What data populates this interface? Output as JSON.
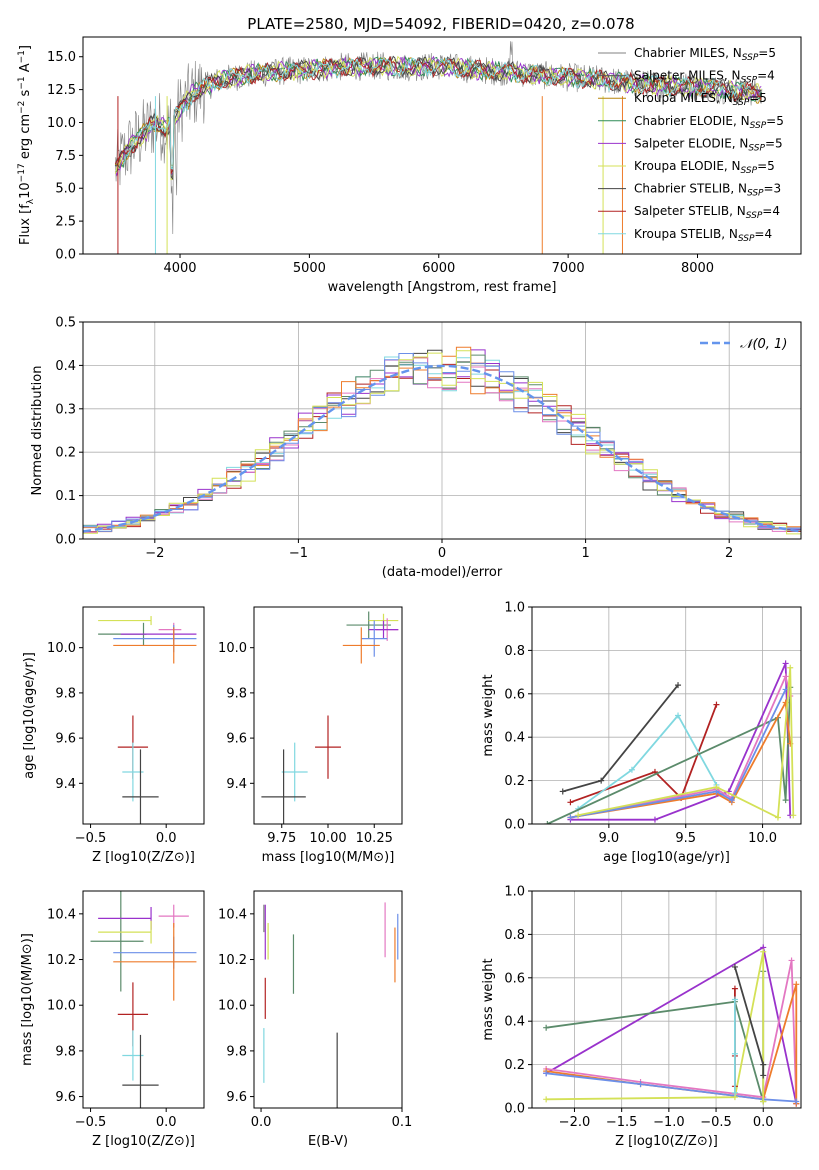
{
  "figure": {
    "title": "PLATE=2580, MJD=54092, FIBERID=0420, z=0.078"
  },
  "colors": {
    "data": "#808080",
    "blue": "#6495ED",
    "Chabrier MILES": "#808080",
    "Salpeter MILES": "#5a5a5a",
    "Kroupa MILES": "#b8860b",
    "Chabrier ELODIE": "#2e8b57",
    "Salpeter ELODIE": "#9932cc",
    "Kroupa ELODIE": "#d4e157",
    "Chabrier STELIB": "#444444",
    "Salpeter STELIB": "#b22222",
    "Kroupa STELIB": "#80d8e0",
    "orange": "#ee7c2c",
    "pink": "#e377c2",
    "sage": "#5b8b6b",
    "lightblue": "#6c8fe8"
  },
  "chart_data": [
    {
      "type": "line",
      "title": "PLATE=2580, MJD=54092, FIBERID=0420, z=0.078",
      "xlabel": "wavelength [Angstrom, rest frame]",
      "ylabel": "Flux [f_λ 10^-17 erg cm^-2 s^-1 A^-1]",
      "xlim": [
        3250,
        8800
      ],
      "ylim": [
        0,
        16.5
      ],
      "xticks": [
        4000,
        5000,
        6000,
        7000,
        8000
      ],
      "yticks": [
        0.0,
        2.5,
        5.0,
        7.5,
        10.0,
        12.5,
        15.0
      ],
      "legend_position": "right",
      "series": [
        {
          "name": "Chabrier MILES, N_SSP=5",
          "color": "#808080"
        },
        {
          "name": "Salpeter MILES, N_SSP=4",
          "color": "#5a5a5a"
        },
        {
          "name": "Kroupa MILES, N_SSP=5",
          "color": "#b8860b"
        },
        {
          "name": "Chabrier ELODIE, N_SSP=5",
          "color": "#2e8b57"
        },
        {
          "name": "Salpeter ELODIE, N_SSP=5",
          "color": "#9932cc"
        },
        {
          "name": "Kroupa ELODIE, N_SSP=5",
          "color": "#d4e157"
        },
        {
          "name": "Chabrier STELIB, N_SSP=3",
          "color": "#444444"
        },
        {
          "name": "Salpeter STELIB, N_SSP=4",
          "color": "#b22222"
        },
        {
          "name": "Kroupa STELIB, N_SSP=4",
          "color": "#80d8e0"
        }
      ],
      "continuum": {
        "x": [
          3500,
          3600,
          3700,
          3800,
          3900,
          4000,
          4100,
          4300,
          4500,
          4800,
          5000,
          5200,
          5500,
          5800,
          6000,
          6300,
          6600,
          6900,
          7200,
          7400,
          7600,
          8000,
          8500
        ],
        "y": [
          6.5,
          8.0,
          9.0,
          10.0,
          9.5,
          11.0,
          12.2,
          13.2,
          13.6,
          13.9,
          14.0,
          14.2,
          14.3,
          14.2,
          14.3,
          14.0,
          13.8,
          13.5,
          13.3,
          13.1,
          12.9,
          12.7,
          12.2
        ]
      }
    },
    {
      "type": "bar",
      "xlabel": "(data-model)/error",
      "ylabel": "Normed distribution",
      "xlim": [
        -2.5,
        2.5
      ],
      "ylim": [
        0,
        0.5
      ],
      "xticks": [
        -2,
        -1,
        0,
        1,
        2
      ],
      "yticks": [
        0.0,
        0.1,
        0.2,
        0.3,
        0.4,
        0.5
      ],
      "legend": "𝒩(0, 1)",
      "legend_position": "top-right",
      "bin_width": 0.1
    },
    {
      "type": "scatter",
      "xlabel": "Z [log10(Z/Z⊙)]",
      "ylabel": "age  [log10(age/yr)]",
      "xlim": [
        -0.55,
        0.25
      ],
      "ylim": [
        9.22,
        10.18
      ],
      "xticks": [
        -0.5,
        0.0
      ],
      "yticks": [
        9.4,
        9.6,
        9.8,
        10.0
      ],
      "points": [
        {
          "x": -0.15,
          "y": 10.06,
          "xerr": [
            0.3,
            0.02
          ],
          "yerr": 0.05,
          "color": "#5b8b6b"
        },
        {
          "x": -0.1,
          "y": 10.12,
          "xerr": [
            0.35,
            0.0
          ],
          "yerr": 0.02,
          "color": "#d4e157"
        },
        {
          "x": 0.05,
          "y": 10.08,
          "xerr": [
            0.1,
            0.05
          ],
          "yerr": 0.03,
          "color": "#e377c2"
        },
        {
          "x": 0.05,
          "y": 10.06,
          "xerr": [
            0.35,
            0.15
          ],
          "yerr": 0.03,
          "color": "#9932cc"
        },
        {
          "x": 0.05,
          "y": 10.04,
          "xerr": [
            0.4,
            0.15
          ],
          "yerr": 0.06,
          "color": "#6c8fe8"
        },
        {
          "x": 0.05,
          "y": 10.01,
          "xerr": [
            0.4,
            0.15
          ],
          "yerr": 0.08,
          "color": "#ee7c2c"
        },
        {
          "x": -0.22,
          "y": 9.56,
          "xerr": [
            0.1,
            0.1
          ],
          "yerr": 0.14,
          "color": "#b22222"
        },
        {
          "x": -0.22,
          "y": 9.45,
          "xerr": [
            0.07,
            0.07
          ],
          "yerr": 0.13,
          "color": "#80d8e0"
        },
        {
          "x": -0.17,
          "y": 9.34,
          "xerr": [
            0.12,
            0.12
          ],
          "yerr": 0.21,
          "color": "#444444"
        }
      ]
    },
    {
      "type": "scatter",
      "xlabel": "mass [log10(M/M⊙)]",
      "ylabel": "",
      "xlim": [
        9.6,
        10.4
      ],
      "ylim": [
        9.22,
        10.18
      ],
      "xticks": [
        9.75,
        10.0,
        10.25
      ],
      "xticklabels": [
        "9.75",
        "10.00",
        "10.25"
      ],
      "yticks": [
        9.4,
        9.6,
        9.8,
        10.0
      ],
      "points": [
        {
          "x": 10.22,
          "y": 10.1,
          "xerr": 0.12,
          "yerr": 0.06,
          "color": "#5b8b6b"
        },
        {
          "x": 10.3,
          "y": 10.12,
          "xerr": 0.08,
          "yerr": 0.03,
          "color": "#d4e157"
        },
        {
          "x": 10.32,
          "y": 10.08,
          "xerr": 0.06,
          "yerr": 0.05,
          "color": "#e377c2"
        },
        {
          "x": 10.3,
          "y": 10.08,
          "xerr": 0.08,
          "yerr": 0.04,
          "color": "#9932cc"
        },
        {
          "x": 10.25,
          "y": 10.04,
          "xerr": 0.07,
          "yerr": 0.08,
          "color": "#6c8fe8"
        },
        {
          "x": 10.18,
          "y": 10.01,
          "xerr": 0.1,
          "yerr": 0.08,
          "color": "#ee7c2c"
        },
        {
          "x": 10.0,
          "y": 9.56,
          "xerr": 0.07,
          "yerr": 0.14,
          "color": "#b22222"
        },
        {
          "x": 9.82,
          "y": 9.45,
          "xerr": 0.07,
          "yerr": 0.13,
          "color": "#80d8e0"
        },
        {
          "x": 9.76,
          "y": 9.34,
          "xerr": 0.12,
          "yerr": 0.21,
          "color": "#444444"
        }
      ]
    },
    {
      "type": "line",
      "xlabel": "age  [log10(age/yr)]",
      "ylabel": "mass weight",
      "xlim": [
        8.5,
        10.25
      ],
      "ylim": [
        0,
        1.0
      ],
      "xticks": [
        9.0,
        9.5,
        10.0
      ],
      "yticks": [
        0.0,
        0.2,
        0.4,
        0.6,
        0.8,
        1.0
      ],
      "series": [
        {
          "color": "#444444",
          "x": [
            8.7,
            8.95,
            9.45
          ],
          "y": [
            0.15,
            0.2,
            0.64
          ]
        },
        {
          "color": "#b22222",
          "x": [
            8.75,
            9.3,
            9.47,
            9.7
          ],
          "y": [
            0.1,
            0.24,
            0.12,
            0.55
          ]
        },
        {
          "color": "#80d8e0",
          "x": [
            8.8,
            9.15,
            9.45,
            9.7
          ],
          "y": [
            0.07,
            0.25,
            0.5,
            0.18
          ]
        },
        {
          "color": "#9932cc",
          "x": [
            8.75,
            9.3,
            9.78,
            10.15,
            10.18
          ],
          "y": [
            0.02,
            0.02,
            0.15,
            0.74,
            0.04
          ]
        },
        {
          "color": "#5b8b6b",
          "x": [
            8.6,
            10.1,
            10.15,
            10.18
          ],
          "y": [
            0.0,
            0.49,
            0.11,
            0.63
          ]
        },
        {
          "color": "#e377c2",
          "x": [
            8.75,
            9.7,
            9.8,
            10.15,
            10.18
          ],
          "y": [
            0.03,
            0.16,
            0.12,
            0.68,
            0.59
          ]
        },
        {
          "color": "#ee7c2c",
          "x": [
            8.75,
            9.7,
            9.8,
            10.15,
            10.18
          ],
          "y": [
            0.03,
            0.14,
            0.1,
            0.56,
            0.37
          ]
        },
        {
          "color": "#6c8fe8",
          "x": [
            8.75,
            9.7,
            9.8,
            10.15
          ],
          "y": [
            0.03,
            0.15,
            0.11,
            0.62
          ]
        },
        {
          "color": "#d4e157",
          "x": [
            8.8,
            9.7,
            10.1,
            10.18,
            10.2
          ],
          "y": [
            0.04,
            0.17,
            0.03,
            0.72,
            0.04
          ]
        }
      ]
    },
    {
      "type": "scatter",
      "xlabel": "Z [log10(Z/Z⊙)]",
      "ylabel": "mass [log10(M/M⊙)]",
      "xlim": [
        -0.55,
        0.25
      ],
      "ylim": [
        9.55,
        10.5
      ],
      "xticks": [
        -0.5,
        0.0
      ],
      "yticks": [
        9.6,
        9.8,
        10.0,
        10.2,
        10.4
      ],
      "points": [
        {
          "x": -0.3,
          "y": 10.28,
          "xerr": [
            0.2,
            0.15
          ],
          "yerr": 0.22,
          "color": "#5b8b6b"
        },
        {
          "x": -0.1,
          "y": 10.38,
          "xerr": [
            0.35,
            0.0
          ],
          "yerr": 0.05,
          "color": "#9932cc"
        },
        {
          "x": -0.1,
          "y": 10.32,
          "xerr": [
            0.35,
            0.0
          ],
          "yerr": 0.05,
          "color": "#d4e157"
        },
        {
          "x": 0.05,
          "y": 10.39,
          "xerr": [
            0.1,
            0.1
          ],
          "yerr": 0.05,
          "color": "#e377c2"
        },
        {
          "x": 0.05,
          "y": 10.23,
          "xerr": [
            0.4,
            0.15
          ],
          "yerr": 0.07,
          "color": "#6c8fe8"
        },
        {
          "x": 0.05,
          "y": 10.19,
          "xerr": [
            0.4,
            0.15
          ],
          "yerr": 0.17,
          "color": "#ee7c2c"
        },
        {
          "x": -0.22,
          "y": 9.96,
          "xerr": [
            0.1,
            0.1
          ],
          "yerr": 0.14,
          "color": "#b22222"
        },
        {
          "x": -0.22,
          "y": 9.78,
          "xerr": [
            0.07,
            0.07
          ],
          "yerr": 0.11,
          "color": "#80d8e0"
        },
        {
          "x": -0.17,
          "y": 9.65,
          "xerr": [
            0.12,
            0.12
          ],
          "yerr": 0.22,
          "color": "#444444"
        }
      ]
    },
    {
      "type": "scatter",
      "xlabel": "E(B-V)",
      "ylabel": "",
      "xlim": [
        -0.005,
        0.1
      ],
      "ylim": [
        9.55,
        10.5
      ],
      "xticks": [
        0.0,
        0.1
      ],
      "xticklabels": [
        "0.0",
        "0.1"
      ],
      "yticks": [
        9.6,
        9.8,
        10.0,
        10.2,
        10.4
      ],
      "points": [
        {
          "x": 0.003,
          "y": 10.32,
          "yerr": 0.12,
          "color": "#9932cc"
        },
        {
          "x": 0.005,
          "y": 10.28,
          "yerr": 0.08,
          "color": "#d4e157"
        },
        {
          "x": 0.023,
          "y": 10.18,
          "yerr": 0.13,
          "color": "#5b8b6b"
        },
        {
          "x": 0.003,
          "y": 10.03,
          "yerr": 0.09,
          "color": "#b22222"
        },
        {
          "x": 0.002,
          "y": 9.78,
          "yerr": 0.12,
          "color": "#80d8e0"
        },
        {
          "x": 0.054,
          "y": 9.66,
          "yerr": 0.22,
          "color": "#444444"
        },
        {
          "x": 0.088,
          "y": 10.33,
          "yerr": 0.12,
          "color": "#e377c2"
        },
        {
          "x": 0.095,
          "y": 10.22,
          "yerr": 0.12,
          "color": "#ee7c2c"
        },
        {
          "x": 0.097,
          "y": 10.3,
          "yerr": 0.1,
          "color": "#6c8fe8"
        },
        {
          "x": 0.002,
          "y": 10.38,
          "yerr": 0.06,
          "color": "#808080"
        }
      ]
    },
    {
      "type": "line",
      "xlabel": "Z [log10(Z/Z⊙)]",
      "ylabel": "mass weight",
      "xlim": [
        -2.45,
        0.4
      ],
      "ylim": [
        0,
        1.0
      ],
      "xticks": [
        -2.0,
        -1.5,
        -1.0,
        -0.5,
        0.0
      ],
      "yticks": [
        0.0,
        0.2,
        0.4,
        0.6,
        0.8,
        1.0
      ],
      "series": [
        {
          "color": "#9932cc",
          "x": [
            -2.3,
            0.0,
            0.35
          ],
          "y": [
            0.16,
            0.74,
            0.02
          ]
        },
        {
          "color": "#5b8b6b",
          "x": [
            -2.3,
            -0.3,
            0.0,
            0.0
          ],
          "y": [
            0.37,
            0.49,
            0.03,
            0.63
          ]
        },
        {
          "color": "#e377c2",
          "x": [
            -2.3,
            -1.3,
            0.0,
            0.3,
            0.35
          ],
          "y": [
            0.18,
            0.12,
            0.05,
            0.68,
            0.02
          ]
        },
        {
          "color": "#ee7c2c",
          "x": [
            -2.3,
            -1.3,
            0.0,
            0.35,
            0.35
          ],
          "y": [
            0.17,
            0.11,
            0.04,
            0.57,
            0.02
          ]
        },
        {
          "color": "#6c8fe8",
          "x": [
            -2.3,
            -1.3,
            0.0,
            0.35
          ],
          "y": [
            0.16,
            0.11,
            0.04,
            0.03
          ]
        },
        {
          "color": "#d4e157",
          "x": [
            -2.3,
            -0.3,
            0.0,
            0.0
          ],
          "y": [
            0.04,
            0.05,
            0.72,
            0.03
          ]
        },
        {
          "color": "#444444",
          "x": [
            -0.3,
            0.0,
            0.0
          ],
          "y": [
            0.65,
            0.2,
            0.15
          ]
        },
        {
          "color": "#b22222",
          "x": [
            -0.3,
            -0.3,
            -0.3
          ],
          "y": [
            0.1,
            0.24,
            0.55
          ]
        },
        {
          "color": "#80d8e0",
          "x": [
            -0.3,
            -0.3,
            -0.3
          ],
          "y": [
            0.07,
            0.25,
            0.5
          ]
        }
      ]
    }
  ]
}
